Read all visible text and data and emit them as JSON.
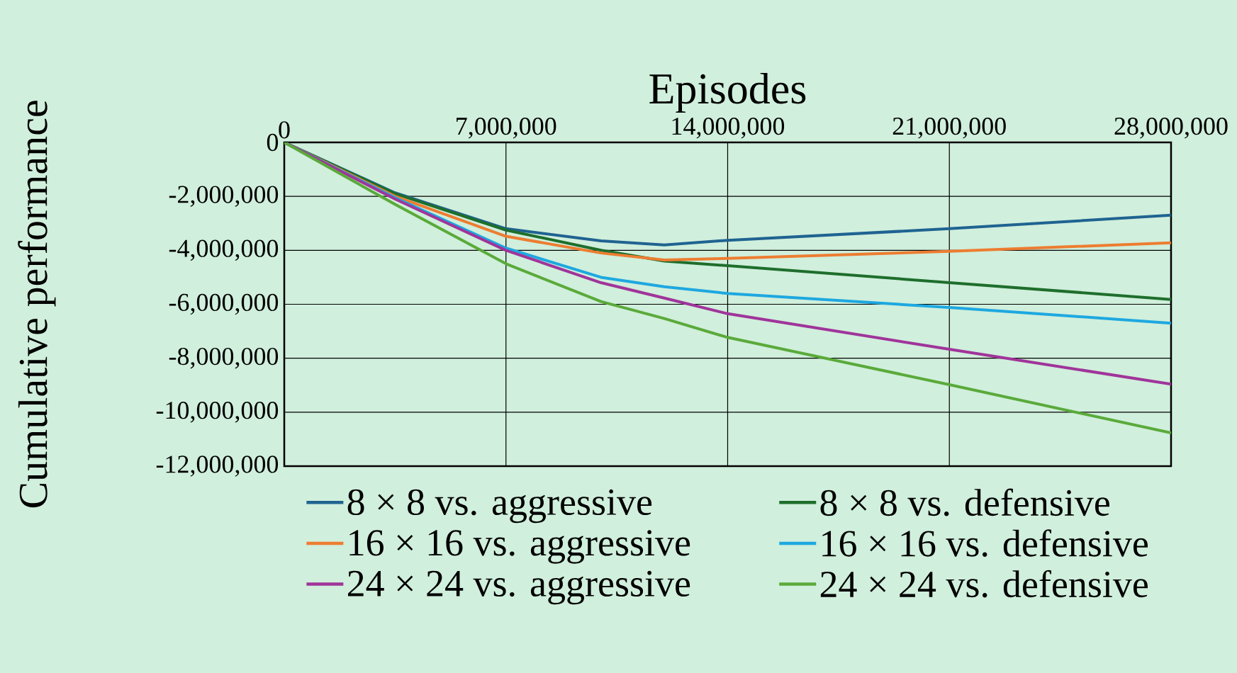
{
  "chart_data": {
    "type": "line",
    "xlabel": "Episodes",
    "ylabel": "Cumulative performance",
    "x": [
      0,
      3500000,
      7000000,
      10000000,
      12000000,
      14000000,
      21000000,
      28000000
    ],
    "series": [
      {
        "name": "8 × 8 vs. aggressive",
        "color": "#1f6391",
        "values": [
          0,
          -1870000,
          -3200000,
          -3650000,
          -3800000,
          -3630000,
          -3200000,
          -2700000
        ]
      },
      {
        "name": "8 × 8 vs. defensive",
        "color": "#1e6e2c",
        "values": [
          0,
          -1900000,
          -3250000,
          -4000000,
          -4400000,
          -4570000,
          -5200000,
          -5820000
        ]
      },
      {
        "name": "16 × 16 vs. aggressive",
        "color": "#ed7d31",
        "values": [
          0,
          -2000000,
          -3480000,
          -4100000,
          -4360000,
          -4300000,
          -4040000,
          -3720000
        ]
      },
      {
        "name": "16 × 16 vs. defensive",
        "color": "#1ea8e0",
        "values": [
          0,
          -2050000,
          -3920000,
          -5000000,
          -5350000,
          -5600000,
          -6120000,
          -6700000
        ]
      },
      {
        "name": "24 × 24 vs. aggressive",
        "color": "#a0349a",
        "values": [
          0,
          -2100000,
          -4000000,
          -5200000,
          -5770000,
          -6350000,
          -7670000,
          -8960000
        ]
      },
      {
        "name": "24 × 24 vs. defensive",
        "color": "#5aaa3a",
        "values": [
          0,
          -2300000,
          -4500000,
          -5900000,
          -6530000,
          -7230000,
          -8980000,
          -10770000
        ]
      }
    ],
    "xlim": [
      0,
      28000000
    ],
    "xticks": [
      0,
      {
        "value": 7000000,
        "label": "7,000,000"
      },
      {
        "value": 14000000,
        "label": "14,000,000"
      },
      {
        "value": 21000000,
        "label": "21,000,000"
      },
      {
        "value": 28000000,
        "label": "28,000,000"
      }
    ],
    "ylim": [
      -12000000,
      0
    ],
    "yticks": [
      0,
      {
        "value": -2000000,
        "label": "-2,000,000"
      },
      {
        "value": -4000000,
        "label": "-4,000,000"
      },
      {
        "value": -6000000,
        "label": "-6,000,000"
      },
      {
        "value": -8000000,
        "label": "-8,000,000"
      },
      {
        "value": -10000000,
        "label": "-10,000,000"
      },
      {
        "value": -12000000,
        "label": "-12,000,000"
      }
    ],
    "grid": true,
    "legend": "bottom",
    "marker": "none",
    "line_style": "solid"
  }
}
